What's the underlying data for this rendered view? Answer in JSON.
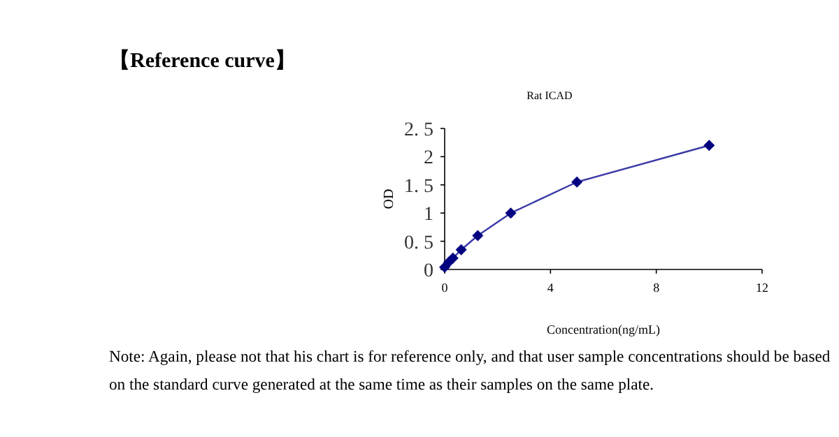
{
  "chart_data": {
    "type": "line",
    "title": "【Reference curve】",
    "subtitle": "Rat ICAD",
    "xlabel": "Concentration(ng/mL)",
    "ylabel": "OD",
    "x": [
      0,
      0.156,
      0.312,
      0.625,
      1.25,
      2.5,
      5,
      10
    ],
    "series": [
      {
        "color": "#3a3aa8",
        "values": [
          0.04,
          0.13,
          0.2,
          0.35,
          0.6,
          1.0,
          1.55,
          2.2
        ]
      }
    ],
    "xlim": [
      0,
      12
    ],
    "xticks": [
      0,
      4,
      8,
      12
    ],
    "ylim": [
      0,
      2.5
    ],
    "yticks": [
      0,
      {
        "value": 0.5,
        "label": "0. 5"
      },
      1,
      {
        "value": 1.5,
        "label": "1. 5"
      },
      2,
      {
        "value": 2.5,
        "label": "2. 5"
      }
    ],
    "marker": "diamond",
    "line_style": "solid",
    "grid": false,
    "annotations": [
      "Note: Again, please not that his chart is for reference only, and that user sample concentrations should be based on the standard curve generated at the same time as their samples on the same plate."
    ]
  }
}
